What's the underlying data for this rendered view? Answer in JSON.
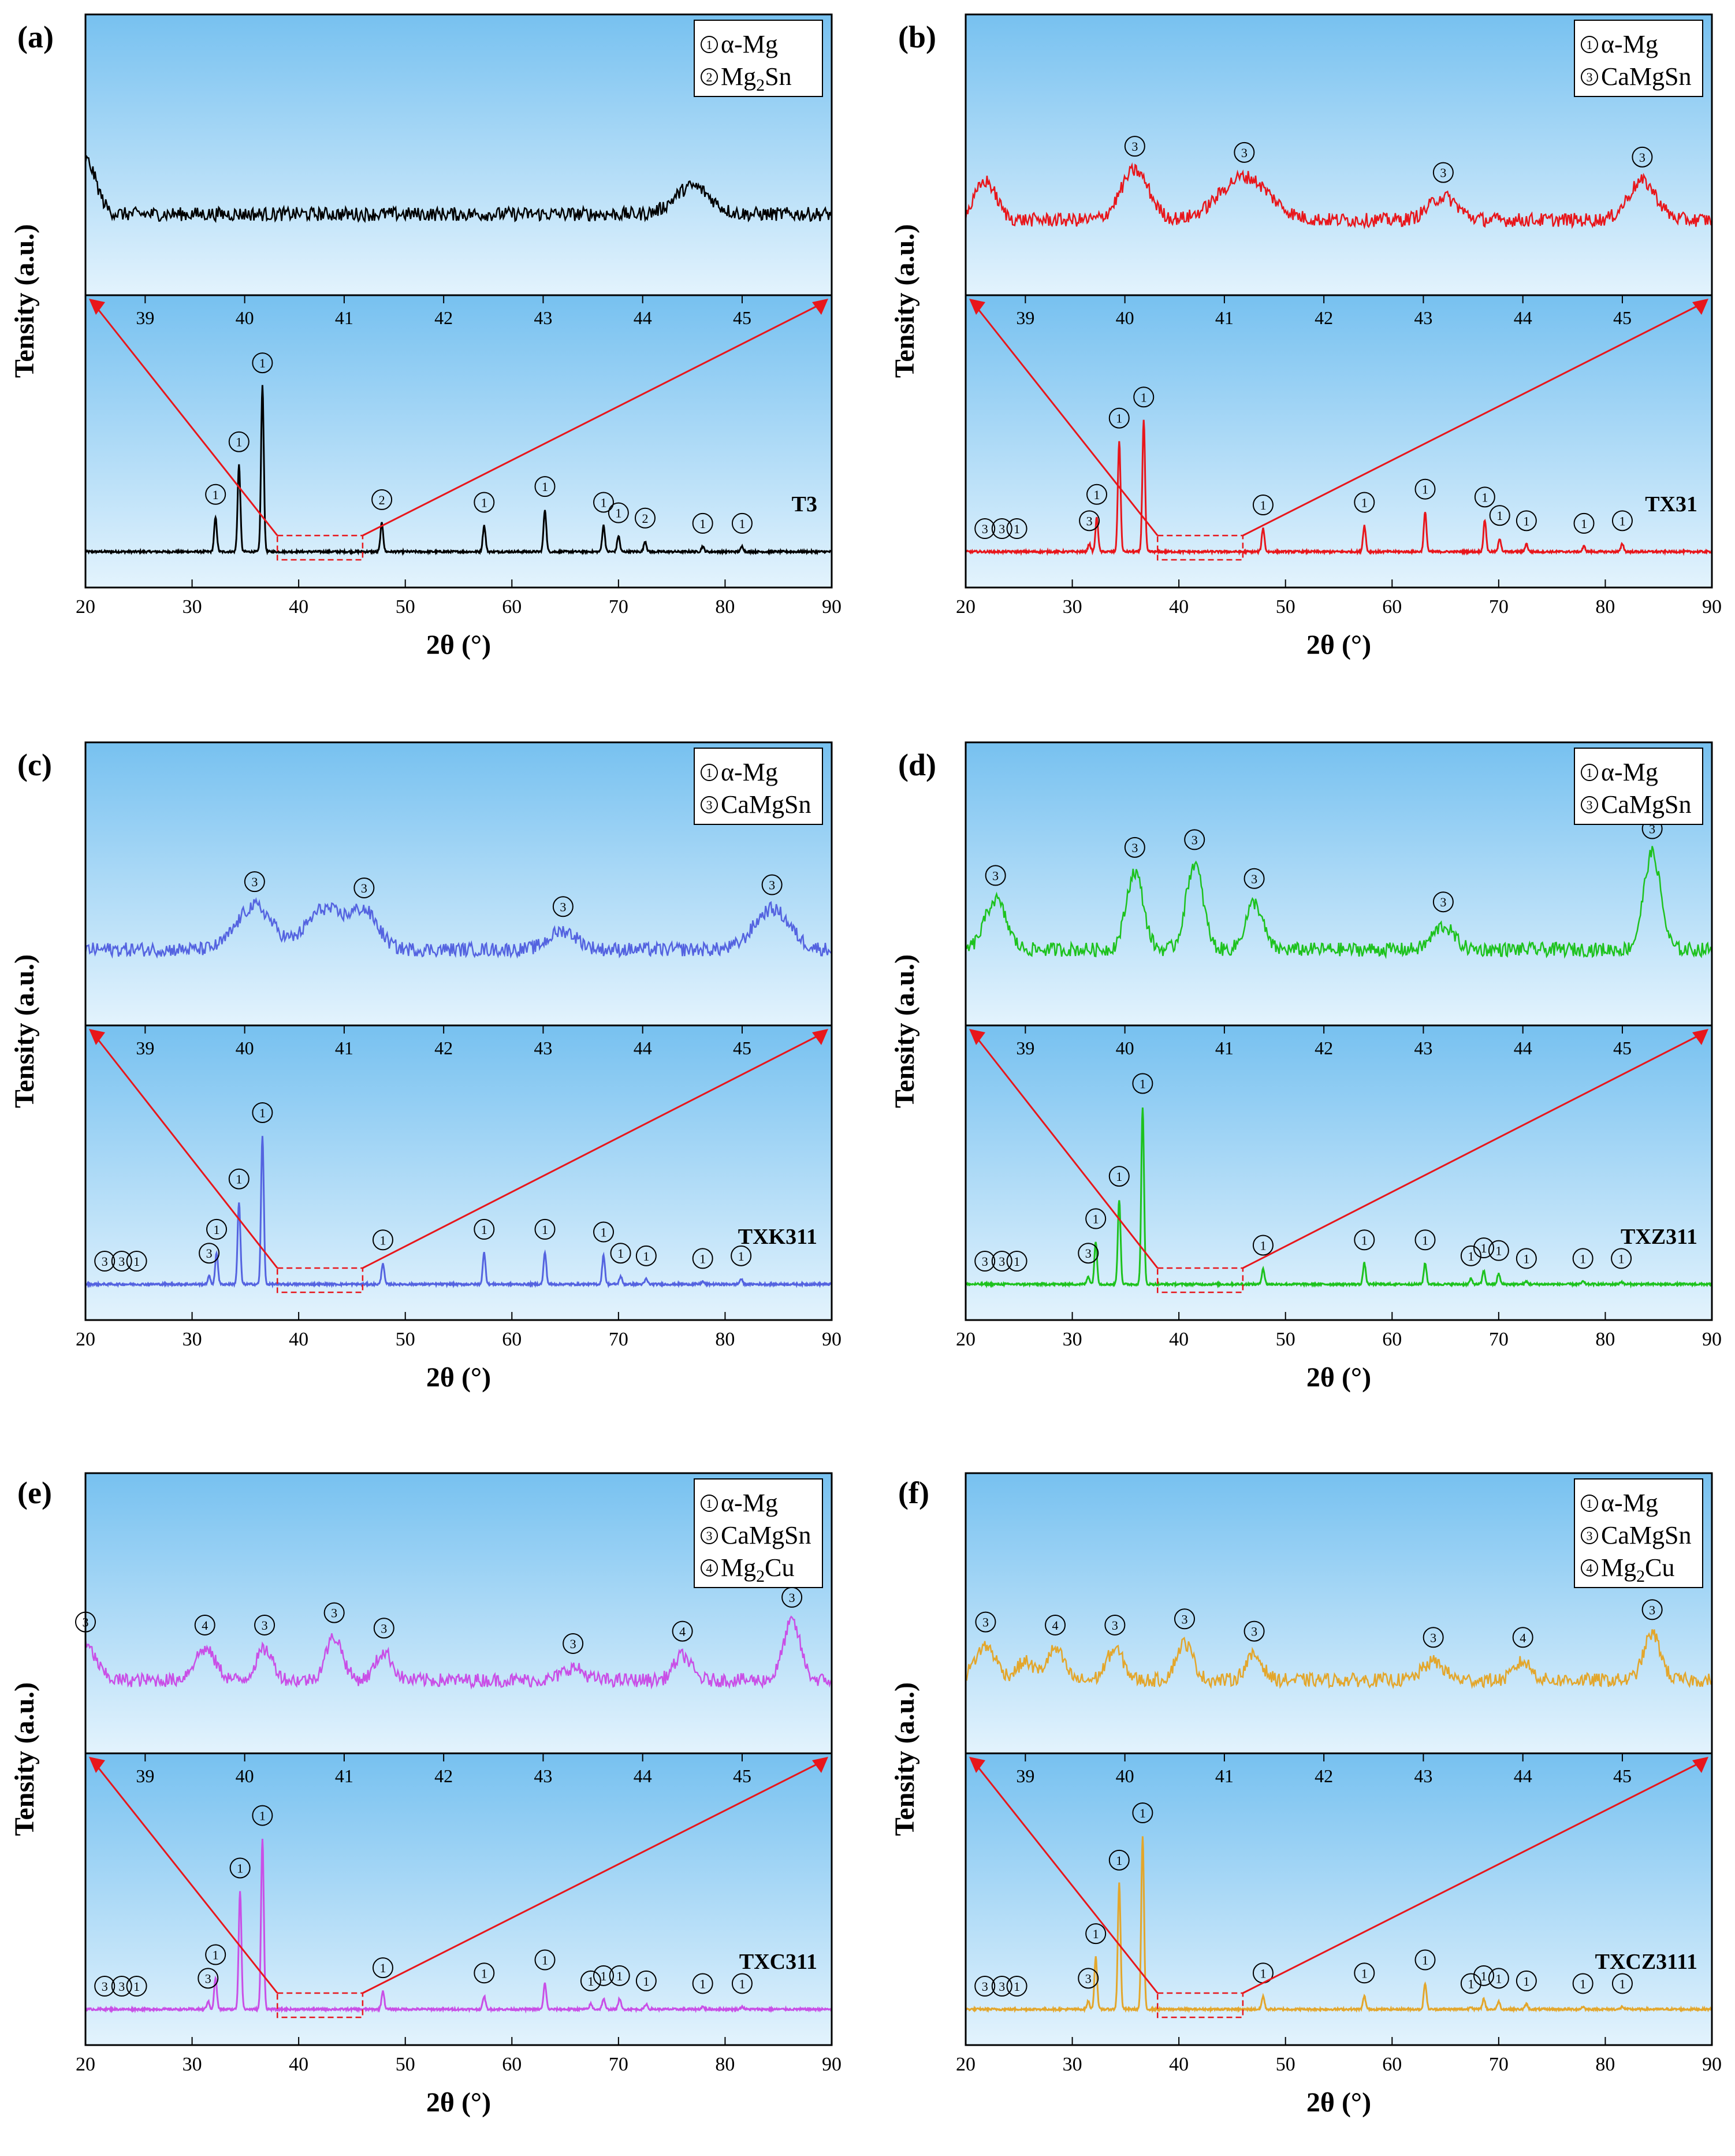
{
  "figure": {
    "xlabel": "2θ (°)",
    "ylabel": "Tensity (a.u.)",
    "legend_phases": {
      "1": {
        "symbol": "①",
        "name": "α-Mg"
      },
      "2": {
        "symbol": "②",
        "name": "Mg",
        "sub": "2",
        "tail": "Sn"
      },
      "3": {
        "symbol": "③",
        "name": "CaMgSn"
      },
      "4": {
        "symbol": "④",
        "name": "Mg",
        "sub": "2",
        "tail": "Cu"
      }
    }
  },
  "chart_data": [
    {
      "panel": "(a)",
      "sample": "T3",
      "type": "line",
      "color": "#000000",
      "title": "",
      "xlabel": "2θ (°)",
      "ylabel": "Tensity (a.u.)",
      "xlim": [
        20,
        90
      ],
      "xticks": [
        20,
        30,
        40,
        50,
        60,
        70,
        80,
        90
      ],
      "zoom_range": [
        38,
        46
      ],
      "legend": [
        "α-Mg",
        "Mg₂Sn"
      ],
      "legend_ids": [
        1,
        2
      ],
      "peaks": [
        {
          "x": 32.2,
          "h": 0.13,
          "phase": 1
        },
        {
          "x": 34.4,
          "h": 0.33,
          "phase": 1
        },
        {
          "x": 36.6,
          "h": 0.63,
          "phase": 1
        },
        {
          "x": 47.8,
          "h": 0.11,
          "phase": 2
        },
        {
          "x": 57.4,
          "h": 0.1,
          "phase": 1
        },
        {
          "x": 63.1,
          "h": 0.16,
          "phase": 1
        },
        {
          "x": 68.6,
          "h": 0.1,
          "phase": 1
        },
        {
          "x": 70.0,
          "h": 0.06,
          "phase": 1
        },
        {
          "x": 72.5,
          "h": 0.04,
          "phase": 2
        },
        {
          "x": 77.9,
          "h": 0.02,
          "phase": 1
        },
        {
          "x": 81.6,
          "h": 0.02,
          "phase": 1
        }
      ],
      "inset": {
        "xlim": [
          38.4,
          45.9
        ],
        "xticks": [
          39,
          40,
          41,
          42,
          43,
          44,
          45
        ],
        "baseline": 0.5,
        "features": [
          {
            "x": 38.4,
            "h": 0.35,
            "w": 0.15
          },
          {
            "x": 44.5,
            "h": 0.18,
            "w": 0.25
          }
        ],
        "peaks": []
      }
    },
    {
      "panel": "(b)",
      "sample": "TX31",
      "type": "line",
      "color": "#e8161b",
      "title": "",
      "xlabel": "2θ (°)",
      "ylabel": "Tensity (a.u.)",
      "xlim": [
        20,
        90
      ],
      "xticks": [
        20,
        30,
        40,
        50,
        60,
        70,
        80,
        90
      ],
      "zoom_range": [
        38,
        46
      ],
      "legend": [
        "α-Mg",
        "CaMgSn"
      ],
      "legend_ids": [
        1,
        3
      ],
      "peaks": [
        {
          "x": 21.8,
          "h": 0.0,
          "phase": 3
        },
        {
          "x": 23.4,
          "h": 0.0,
          "phase": 3
        },
        {
          "x": 24.8,
          "h": 0.0,
          "phase": 1
        },
        {
          "x": 31.6,
          "h": 0.03,
          "phase": 3
        },
        {
          "x": 32.3,
          "h": 0.13,
          "phase": 1
        },
        {
          "x": 34.4,
          "h": 0.42,
          "phase": 1
        },
        {
          "x": 36.7,
          "h": 0.5,
          "phase": 1
        },
        {
          "x": 47.9,
          "h": 0.09,
          "phase": 1
        },
        {
          "x": 57.4,
          "h": 0.1,
          "phase": 1
        },
        {
          "x": 63.1,
          "h": 0.15,
          "phase": 1
        },
        {
          "x": 68.7,
          "h": 0.12,
          "phase": 1
        },
        {
          "x": 70.1,
          "h": 0.05,
          "phase": 1
        },
        {
          "x": 72.6,
          "h": 0.03,
          "phase": 1
        },
        {
          "x": 78.0,
          "h": 0.02,
          "phase": 1
        },
        {
          "x": 81.6,
          "h": 0.03,
          "phase": 1
        }
      ],
      "inset": {
        "xlim": [
          38.4,
          45.9
        ],
        "xticks": [
          39,
          40,
          41,
          42,
          43,
          44,
          45
        ],
        "baseline": 0.35,
        "features": [
          {
            "x": 38.6,
            "h": 0.25,
            "w": 0.15
          }
        ],
        "peaks": [
          {
            "x": 40.1,
            "h": 0.32,
            "w": 0.2,
            "phase": 3
          },
          {
            "x": 41.2,
            "h": 0.28,
            "w": 0.35,
            "phase": 3
          },
          {
            "x": 43.2,
            "h": 0.15,
            "w": 0.2,
            "phase": 3
          },
          {
            "x": 45.2,
            "h": 0.25,
            "w": 0.2,
            "phase": 3
          }
        ]
      }
    },
    {
      "panel": "(c)",
      "sample": "TXK311",
      "type": "line",
      "color": "#5463e0",
      "title": "",
      "xlabel": "2θ (°)",
      "ylabel": "Tensity (a.u.)",
      "xlim": [
        20,
        90
      ],
      "xticks": [
        20,
        30,
        40,
        50,
        60,
        70,
        80,
        90
      ],
      "zoom_range": [
        38,
        46
      ],
      "legend": [
        "α-Mg",
        "CaMgSn"
      ],
      "legend_ids": [
        1,
        3
      ],
      "peaks": [
        {
          "x": 21.8,
          "h": 0.0,
          "phase": 3
        },
        {
          "x": 23.4,
          "h": 0.0,
          "phase": 3
        },
        {
          "x": 24.8,
          "h": 0.0,
          "phase": 1
        },
        {
          "x": 31.6,
          "h": 0.03,
          "phase": 3
        },
        {
          "x": 32.3,
          "h": 0.12,
          "phase": 1
        },
        {
          "x": 34.4,
          "h": 0.31,
          "phase": 1
        },
        {
          "x": 36.6,
          "h": 0.56,
          "phase": 1
        },
        {
          "x": 47.9,
          "h": 0.08,
          "phase": 1
        },
        {
          "x": 57.4,
          "h": 0.12,
          "phase": 1
        },
        {
          "x": 63.1,
          "h": 0.12,
          "phase": 1
        },
        {
          "x": 68.6,
          "h": 0.11,
          "phase": 1
        },
        {
          "x": 70.2,
          "h": 0.03,
          "phase": 1
        },
        {
          "x": 72.6,
          "h": 0.02,
          "phase": 1
        },
        {
          "x": 77.9,
          "h": 0.01,
          "phase": 1
        },
        {
          "x": 81.5,
          "h": 0.02,
          "phase": 1
        }
      ],
      "inset": {
        "xlim": [
          38.4,
          45.9
        ],
        "xticks": [
          39,
          40,
          41,
          42,
          43,
          44,
          45
        ],
        "baseline": 0.35,
        "features": [
          {
            "x": 40.8,
            "h": 0.26,
            "w": 0.25
          }
        ],
        "peaks": [
          {
            "x": 40.1,
            "h": 0.28,
            "w": 0.25,
            "phase": 3
          },
          {
            "x": 41.2,
            "h": 0.24,
            "w": 0.2,
            "phase": 3
          },
          {
            "x": 43.2,
            "h": 0.12,
            "w": 0.2,
            "phase": 3
          },
          {
            "x": 45.3,
            "h": 0.26,
            "w": 0.25,
            "phase": 3
          }
        ]
      }
    },
    {
      "panel": "(d)",
      "sample": "TXZ311",
      "type": "line",
      "color": "#1dc21d",
      "title": "",
      "xlabel": "2θ (°)",
      "ylabel": "Tensity (a.u.)",
      "xlim": [
        20,
        90
      ],
      "xticks": [
        20,
        30,
        40,
        50,
        60,
        70,
        80,
        90
      ],
      "zoom_range": [
        38,
        46
      ],
      "legend": [
        "α-Mg",
        "CaMgSn"
      ],
      "legend_ids": [
        1,
        3
      ],
      "peaks": [
        {
          "x": 21.8,
          "h": 0.0,
          "phase": 3
        },
        {
          "x": 23.4,
          "h": 0.0,
          "phase": 3
        },
        {
          "x": 24.8,
          "h": 0.0,
          "phase": 1
        },
        {
          "x": 31.5,
          "h": 0.03,
          "phase": 3
        },
        {
          "x": 32.2,
          "h": 0.16,
          "phase": 1
        },
        {
          "x": 34.4,
          "h": 0.32,
          "phase": 1
        },
        {
          "x": 36.6,
          "h": 0.67,
          "phase": 1
        },
        {
          "x": 47.9,
          "h": 0.06,
          "phase": 1
        },
        {
          "x": 57.4,
          "h": 0.08,
          "phase": 1
        },
        {
          "x": 63.1,
          "h": 0.08,
          "phase": 1
        },
        {
          "x": 67.4,
          "h": 0.02,
          "phase": 1
        },
        {
          "x": 68.6,
          "h": 0.05,
          "phase": 1
        },
        {
          "x": 70.0,
          "h": 0.04,
          "phase": 1
        },
        {
          "x": 72.6,
          "h": 0.01,
          "phase": 1
        },
        {
          "x": 77.9,
          "h": 0.01,
          "phase": 1
        },
        {
          "x": 81.5,
          "h": 0.01,
          "phase": 1
        }
      ],
      "inset": {
        "xlim": [
          38.4,
          45.9
        ],
        "xticks": [
          39,
          40,
          41,
          42,
          43,
          44,
          45
        ],
        "baseline": 0.35,
        "features": [],
        "peaks": [
          {
            "x": 38.7,
            "h": 0.32,
            "w": 0.15,
            "phase": 3
          },
          {
            "x": 40.1,
            "h": 0.5,
            "w": 0.12,
            "phase": 3
          },
          {
            "x": 40.7,
            "h": 0.55,
            "w": 0.12,
            "phase": 3
          },
          {
            "x": 41.3,
            "h": 0.3,
            "w": 0.12,
            "phase": 3
          },
          {
            "x": 43.2,
            "h": 0.15,
            "w": 0.15,
            "phase": 3
          },
          {
            "x": 45.3,
            "h": 0.62,
            "w": 0.12,
            "phase": 3
          }
        ]
      }
    },
    {
      "panel": "(e)",
      "sample": "TXC311",
      "type": "line",
      "color": "#c94fe6",
      "title": "",
      "xlabel": "2θ (°)",
      "ylabel": "Tensity (a.u.)",
      "xlim": [
        20,
        90
      ],
      "xticks": [
        20,
        30,
        40,
        50,
        60,
        70,
        80,
        90
      ],
      "zoom_range": [
        38,
        46
      ],
      "legend": [
        "α-Mg",
        "CaMgSn",
        "Mg₂Cu"
      ],
      "legend_ids": [
        1,
        3,
        4
      ],
      "peaks": [
        {
          "x": 21.8,
          "h": 0.0,
          "phase": 3
        },
        {
          "x": 23.4,
          "h": 0.0,
          "phase": 3
        },
        {
          "x": 24.8,
          "h": 0.0,
          "phase": 1
        },
        {
          "x": 31.5,
          "h": 0.03,
          "phase": 3
        },
        {
          "x": 32.2,
          "h": 0.12,
          "phase": 1
        },
        {
          "x": 34.5,
          "h": 0.45,
          "phase": 1
        },
        {
          "x": 36.6,
          "h": 0.65,
          "phase": 1
        },
        {
          "x": 47.9,
          "h": 0.07,
          "phase": 1
        },
        {
          "x": 57.4,
          "h": 0.05,
          "phase": 1
        },
        {
          "x": 63.1,
          "h": 0.1,
          "phase": 1
        },
        {
          "x": 67.4,
          "h": 0.02,
          "phase": 1
        },
        {
          "x": 68.6,
          "h": 0.04,
          "phase": 1
        },
        {
          "x": 70.1,
          "h": 0.04,
          "phase": 1
        },
        {
          "x": 72.6,
          "h": 0.02,
          "phase": 1
        },
        {
          "x": 77.9,
          "h": 0.01,
          "phase": 1
        },
        {
          "x": 81.6,
          "h": 0.01,
          "phase": 1
        }
      ],
      "inset": {
        "xlim": [
          38.4,
          45.9
        ],
        "xticks": [
          39,
          40,
          41,
          42,
          43,
          44,
          45
        ],
        "baseline": 0.3,
        "features": [],
        "peaks": [
          {
            "x": 38.4,
            "h": 0.22,
            "w": 0.15,
            "phase": 3
          },
          {
            "x": 39.6,
            "h": 0.2,
            "w": 0.15,
            "phase": 4
          },
          {
            "x": 40.2,
            "h": 0.2,
            "w": 0.12,
            "phase": 3
          },
          {
            "x": 40.9,
            "h": 0.28,
            "w": 0.12,
            "phase": 3
          },
          {
            "x": 41.4,
            "h": 0.18,
            "w": 0.12,
            "phase": 3
          },
          {
            "x": 43.3,
            "h": 0.08,
            "w": 0.15,
            "phase": 3
          },
          {
            "x": 44.4,
            "h": 0.16,
            "w": 0.12,
            "phase": 4
          },
          {
            "x": 45.5,
            "h": 0.38,
            "w": 0.12,
            "phase": 3
          }
        ]
      }
    },
    {
      "panel": "(f)",
      "sample": "TXCZ3111",
      "type": "line",
      "color": "#e3a62b",
      "title": "",
      "xlabel": "2θ (°)",
      "ylabel": "Tensity (a.u.)",
      "xlim": [
        20,
        90
      ],
      "xticks": [
        20,
        30,
        40,
        50,
        60,
        70,
        80,
        90
      ],
      "zoom_range": [
        38,
        46
      ],
      "legend": [
        "α-Mg",
        "CaMgSn",
        "Mg₂Cu"
      ],
      "legend_ids": [
        1,
        3,
        4
      ],
      "peaks": [
        {
          "x": 21.8,
          "h": 0.0,
          "phase": 3
        },
        {
          "x": 23.4,
          "h": 0.0,
          "phase": 3
        },
        {
          "x": 24.8,
          "h": 0.0,
          "phase": 1
        },
        {
          "x": 31.5,
          "h": 0.03,
          "phase": 3
        },
        {
          "x": 32.2,
          "h": 0.2,
          "phase": 1
        },
        {
          "x": 34.4,
          "h": 0.48,
          "phase": 1
        },
        {
          "x": 36.6,
          "h": 0.66,
          "phase": 1
        },
        {
          "x": 47.9,
          "h": 0.05,
          "phase": 1
        },
        {
          "x": 57.4,
          "h": 0.05,
          "phase": 1
        },
        {
          "x": 63.1,
          "h": 0.1,
          "phase": 1
        },
        {
          "x": 67.4,
          "h": 0.01,
          "phase": 1
        },
        {
          "x": 68.6,
          "h": 0.04,
          "phase": 1
        },
        {
          "x": 70.0,
          "h": 0.03,
          "phase": 1
        },
        {
          "x": 72.6,
          "h": 0.02,
          "phase": 1
        },
        {
          "x": 77.9,
          "h": 0.01,
          "phase": 1
        },
        {
          "x": 81.6,
          "h": 0.01,
          "phase": 1
        }
      ],
      "inset": {
        "xlim": [
          38.4,
          45.9
        ],
        "xticks": [
          39,
          40,
          41,
          42,
          43,
          44,
          45
        ],
        "baseline": 0.3,
        "features": [
          {
            "x": 39.0,
            "h": 0.12,
            "w": 0.12
          }
        ],
        "peaks": [
          {
            "x": 38.6,
            "h": 0.22,
            "w": 0.15,
            "phase": 3
          },
          {
            "x": 39.3,
            "h": 0.2,
            "w": 0.12,
            "phase": 4
          },
          {
            "x": 39.9,
            "h": 0.2,
            "w": 0.12,
            "phase": 3
          },
          {
            "x": 40.6,
            "h": 0.24,
            "w": 0.12,
            "phase": 3
          },
          {
            "x": 41.3,
            "h": 0.16,
            "w": 0.12,
            "phase": 3
          },
          {
            "x": 43.1,
            "h": 0.12,
            "w": 0.15,
            "phase": 3
          },
          {
            "x": 44.0,
            "h": 0.12,
            "w": 0.12,
            "phase": 4
          },
          {
            "x": 45.3,
            "h": 0.3,
            "w": 0.12,
            "phase": 3
          }
        ]
      }
    }
  ]
}
